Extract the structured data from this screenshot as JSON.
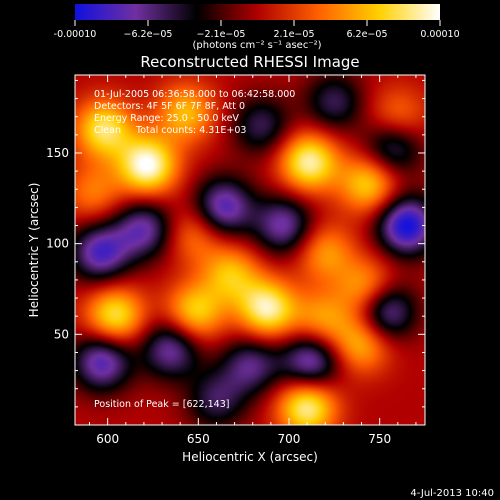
{
  "chart_data": {
    "type": "heatmap",
    "title": "Reconstructed RHESSI Image",
    "xlabel": "Heliocentric X (arcsec)",
    "ylabel": "Heliocentric Y (arcsec)",
    "xlim": [
      582,
      775
    ],
    "ylim": [
      0,
      193
    ],
    "x_ticks": [
      600,
      650,
      700,
      750
    ],
    "y_ticks": [
      50,
      100,
      150
    ],
    "colorbar": {
      "ticks": [
        "-0.00010",
        "−6.2e−05",
        "−2.1e−05",
        "2.1e−05",
        "6.2e−05",
        "0.00010"
      ],
      "unit": "(photons cm⁻² s⁻¹ asec⁻²)",
      "range": [
        -0.0001,
        0.0001
      ],
      "colormap": [
        "#1010e0",
        "#7030a0",
        "#000000",
        "#b00000",
        "#ff6000",
        "#ffd000",
        "#ffffff"
      ]
    },
    "info_lines": [
      "01-Jul-2005 06:36:58.000 to 06:42:58.000",
      "Detectors: 4F 5F 6F 7F 8F, Att 0",
      "Energy Range: 25.0 - 50.0 keV",
      "Clean     Total counts: 4.31E+03"
    ],
    "peak_text": "Position of Peak = [622,143]",
    "peak_position": [
      622,
      143
    ],
    "sources": [
      {
        "x": 622,
        "y": 143,
        "value": 0.0001
      },
      {
        "x": 598,
        "y": 163,
        "value": 8e-05
      },
      {
        "x": 643,
        "y": 172,
        "value": 6e-05
      },
      {
        "x": 711,
        "y": 145,
        "value": 9e-05
      },
      {
        "x": 744,
        "y": 133,
        "value": 7e-05
      },
      {
        "x": 688,
        "y": 64,
        "value": 9e-05
      },
      {
        "x": 668,
        "y": 83,
        "value": 6e-05
      },
      {
        "x": 648,
        "y": 62,
        "value": 7e-05
      },
      {
        "x": 604,
        "y": 60,
        "value": 8e-05
      },
      {
        "x": 743,
        "y": 75,
        "value": 6e-05
      },
      {
        "x": 718,
        "y": 58,
        "value": 5e-05
      },
      {
        "x": 592,
        "y": 128,
        "value": 4e-05
      },
      {
        "x": 710,
        "y": 10,
        "value": 9e-05
      },
      {
        "x": 648,
        "y": 105,
        "value": 4e-05
      },
      {
        "x": 720,
        "y": 95,
        "value": 5e-05
      },
      {
        "x": 760,
        "y": 170,
        "value": 4e-05
      },
      {
        "x": 740,
        "y": 45,
        "value": 6e-05
      },
      {
        "x": 697,
        "y": 110,
        "value": -7e-05
      },
      {
        "x": 765,
        "y": 110,
        "value": -0.0001
      },
      {
        "x": 596,
        "y": 95,
        "value": -8e-05
      },
      {
        "x": 664,
        "y": 120,
        "value": -8e-05
      },
      {
        "x": 597,
        "y": 35,
        "value": -8e-05
      },
      {
        "x": 635,
        "y": 42,
        "value": -7e-05
      },
      {
        "x": 712,
        "y": 35,
        "value": -8e-05
      },
      {
        "x": 753,
        "y": 63,
        "value": -8e-05
      },
      {
        "x": 685,
        "y": 165,
        "value": -5e-05
      },
      {
        "x": 757,
        "y": 153,
        "value": -6e-05
      },
      {
        "x": 620,
        "y": 108,
        "value": -7e-05
      },
      {
        "x": 679,
        "y": 33,
        "value": -6e-05
      },
      {
        "x": 725,
        "y": 178,
        "value": -5e-05
      },
      {
        "x": 660,
        "y": 14,
        "value": -5e-05
      }
    ]
  },
  "footer": {
    "timestamp": "4-Jul-2013 10:40"
  }
}
